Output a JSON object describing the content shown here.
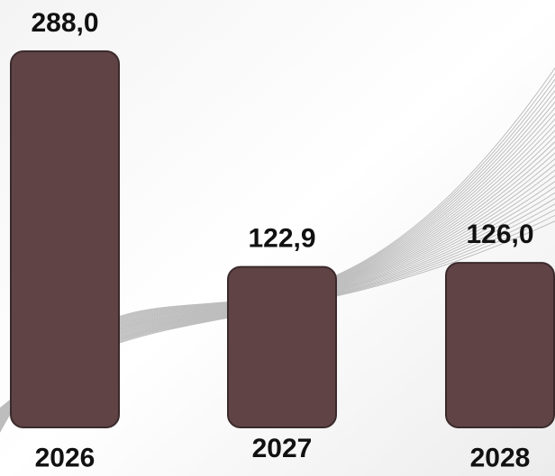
{
  "chart_data": {
    "type": "bar",
    "categories": [
      "2026",
      "2027",
      "2028"
    ],
    "values": [
      288.0,
      122.9,
      126.0
    ],
    "value_labels": [
      "288,0",
      "122,9",
      "126,0"
    ],
    "color": "#5f4345"
  }
}
